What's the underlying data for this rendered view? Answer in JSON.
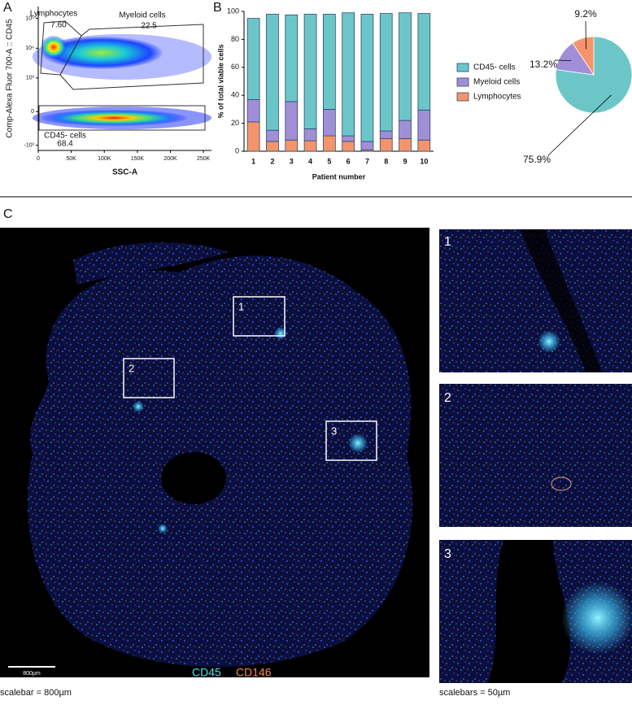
{
  "panels": [
    "A",
    "B",
    "C"
  ],
  "chart_data": [
    {
      "type": "gate",
      "x_label": "SSC-A",
      "y_label": "Comp-Alexa Fluor 700-A :: CD45",
      "categories": [
        "Lymphocytes",
        "Myeloid cells",
        "CD45- cells"
      ],
      "values": [
        7.6,
        22.5,
        68.4
      ],
      "value_labels": [
        "7.60",
        "22.5",
        "68.4"
      ],
      "xlim": [
        0,
        262144
      ],
      "xticks": [
        0,
        {
          "value": 50000,
          "label": "50K"
        },
        {
          "value": 100000,
          "label": "100K"
        },
        {
          "value": 150000,
          "label": "150K"
        },
        {
          "value": 200000,
          "label": "200K"
        },
        {
          "value": 250000,
          "label": "250K"
        }
      ],
      "ylim": [
        -1500,
        250000
      ],
      "y_scale": "biexponential",
      "yticks": [
        {
          "value": -1000,
          "label": "-10³"
        },
        0,
        {
          "value": 1000,
          "label": "10³"
        },
        {
          "value": 10000,
          "label": "10⁴"
        },
        {
          "value": 100000,
          "label": "10⁵"
        }
      ]
    },
    {
      "type": "stacked_bar",
      "x_label": "Patient number",
      "y_label": "% of total viable cells",
      "categories": [
        "1",
        "2",
        "3",
        "4",
        "5",
        "6",
        "7",
        "8",
        "9",
        "10"
      ],
      "series": [
        {
          "name": "CD45- cells",
          "color": "#6cc6c8",
          "values": [
            58,
            83,
            62,
            82,
            68,
            88,
            91,
            84,
            77,
            69
          ]
        },
        {
          "name": "Myeloid cells",
          "color": "#a08fd6",
          "values": [
            16,
            8,
            27.5,
            8.5,
            19,
            4,
            6,
            5.5,
            13,
            21.5
          ]
        },
        {
          "name": "Lymphocytes",
          "color": "#f5946a",
          "values": [
            21,
            7,
            8,
            7.5,
            11,
            7,
            1,
            9,
            9,
            8
          ]
        }
      ],
      "ylim": [
        0,
        100
      ],
      "yticks": [
        0,
        20,
        40,
        60,
        80,
        100
      ],
      "legend": "right"
    },
    {
      "type": "pie",
      "categories": [
        "CD45- cells",
        "Myeloid cells",
        "Lymphocytes"
      ],
      "colors": [
        "#6cc6c8",
        "#a08fd6",
        "#f5946a"
      ],
      "values": [
        75.9,
        13.2,
        9.2
      ],
      "value_labels": [
        "75.9%",
        "13.2%",
        "9.2%"
      ]
    }
  ],
  "microscopy": {
    "regions": [
      "1",
      "2",
      "3"
    ],
    "channels": [
      "CD45",
      "CD146"
    ],
    "scalebar_label": "800µm",
    "caption_main": "scalebar = 800µm",
    "caption_insets": "scalebars = 50µm"
  }
}
